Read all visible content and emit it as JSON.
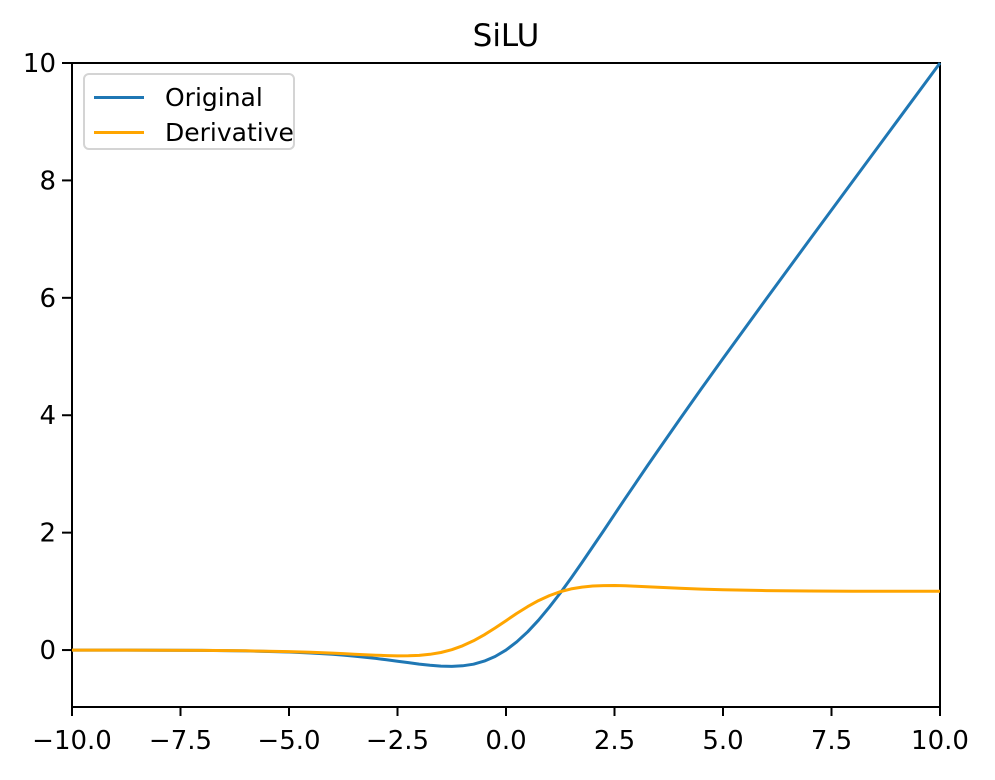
{
  "page": {
    "background": "#ffffff"
  },
  "chart_data": {
    "type": "line",
    "title": "SiLU",
    "xlabel": "",
    "ylabel": "",
    "grid": false,
    "xlim": [
      -10,
      10
    ],
    "ylim": [
      -0.97,
      10.0
    ],
    "x": [
      -10,
      -9,
      -8,
      -7,
      -6,
      -5,
      -4.5,
      -4,
      -3.75,
      -3.5,
      -3.25,
      -3,
      -2.75,
      -2.5,
      -2.25,
      -2,
      -1.75,
      -1.5,
      -1.25,
      -1,
      -0.75,
      -0.5,
      -0.25,
      0,
      0.25,
      0.5,
      0.75,
      1,
      1.25,
      1.5,
      1.75,
      2,
      2.25,
      2.5,
      2.75,
      3,
      3.25,
      3.5,
      3.75,
      4,
      4.5,
      5,
      6,
      7,
      8,
      9,
      10
    ],
    "series": [
      {
        "name": "Original",
        "color": "#1f77b4",
        "values": [
          -0.0005,
          -0.0011,
          -0.0027,
          -0.0064,
          -0.0148,
          -0.0335,
          -0.0494,
          -0.0719,
          -0.0862,
          -0.1026,
          -0.1213,
          -0.1423,
          -0.1652,
          -0.1896,
          -0.2145,
          -0.2384,
          -0.2591,
          -0.2736,
          -0.2784,
          -0.2689,
          -0.2406,
          -0.1888,
          -0.1095,
          0.0,
          0.1405,
          0.3112,
          0.5094,
          0.7311,
          0.9716,
          1.2264,
          1.4909,
          1.7616,
          2.0355,
          2.3104,
          2.5848,
          2.8577,
          3.1287,
          3.3974,
          3.6638,
          3.9281,
          4.4506,
          4.9665,
          5.9852,
          6.9936,
          7.9973,
          8.9989,
          9.9995
        ]
      },
      {
        "name": "Derivative",
        "color": "#ffa500",
        "values": [
          -0.0004,
          -0.001,
          -0.0023,
          -0.0055,
          -0.0123,
          -0.0266,
          -0.0379,
          -0.0527,
          -0.0612,
          -0.0703,
          -0.0795,
          -0.0881,
          -0.0952,
          -0.0994,
          -0.0987,
          -0.0908,
          -0.0727,
          -0.0413,
          0.0063,
          0.0723,
          0.1574,
          0.26,
          0.3763,
          0.5,
          0.6237,
          0.74,
          0.8426,
          0.9277,
          0.9937,
          1.0413,
          1.0727,
          1.0908,
          1.0987,
          1.0994,
          1.0952,
          1.0881,
          1.0795,
          1.0703,
          1.0612,
          1.0527,
          1.0379,
          1.0266,
          1.0123,
          1.0055,
          1.0023,
          1.001,
          1.0004
        ]
      }
    ],
    "xticks": {
      "values": [
        -10,
        -7.5,
        -5,
        -2.5,
        0,
        2.5,
        5,
        7.5,
        10
      ],
      "labels": [
        "−10.0",
        "−7.5",
        "−5.0",
        "−2.5",
        "0.0",
        "2.5",
        "5.0",
        "7.5",
        "10.0"
      ]
    },
    "yticks": {
      "values": [
        0,
        2,
        4,
        6,
        8,
        10
      ],
      "labels": [
        "0",
        "2",
        "4",
        "6",
        "8",
        "10"
      ]
    },
    "legend": {
      "position": "upper-left",
      "entries": [
        "Original",
        "Derivative"
      ]
    }
  }
}
